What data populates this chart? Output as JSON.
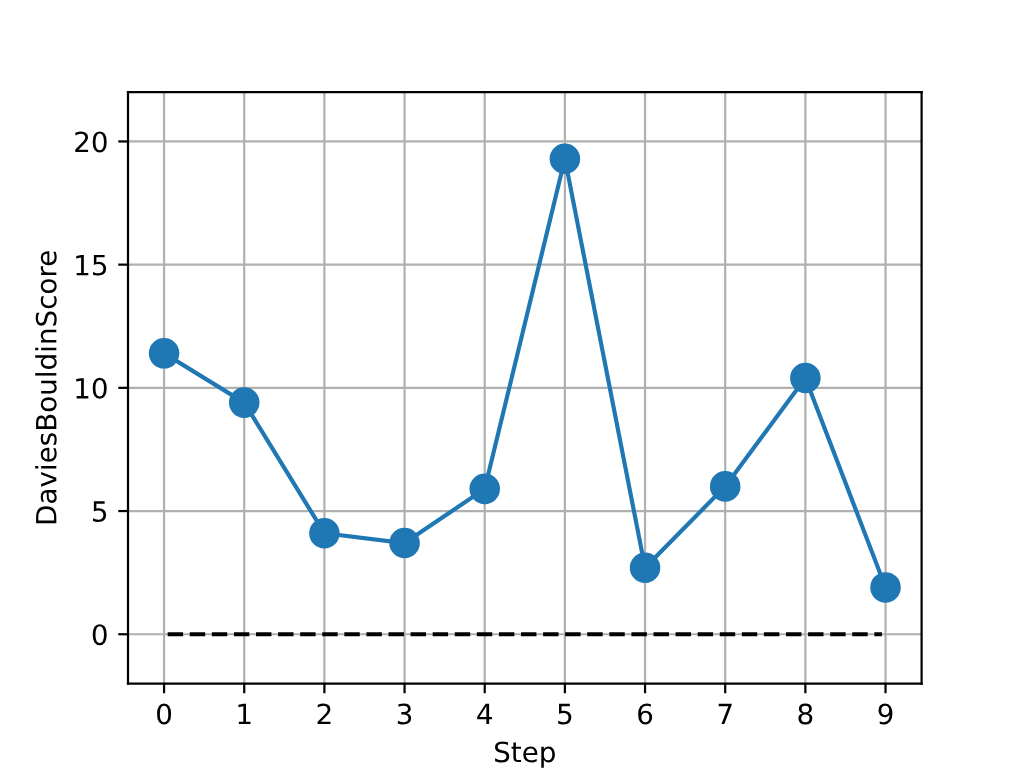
{
  "chart_data": {
    "type": "line",
    "xlabel": "Step",
    "ylabel": "DaviesBouldinScore",
    "categories": [
      "0",
      "1",
      "2",
      "3",
      "4",
      "5",
      "6",
      "7",
      "8",
      "9"
    ],
    "series": [
      {
        "color": "#1f77b4",
        "marker": "circle",
        "line_style": "solid",
        "values": [
          11.4,
          9.4,
          4.1,
          3.7,
          5.9,
          19.3,
          2.7,
          6.0,
          10.4,
          1.9
        ]
      }
    ],
    "ref_lines": [
      {
        "axis": "y",
        "value": 0,
        "color": "#000000",
        "line_style": "dashed"
      }
    ],
    "ylim": [
      -2,
      22
    ],
    "yticks": [
      0,
      5,
      10,
      15,
      20
    ],
    "grid": true
  }
}
